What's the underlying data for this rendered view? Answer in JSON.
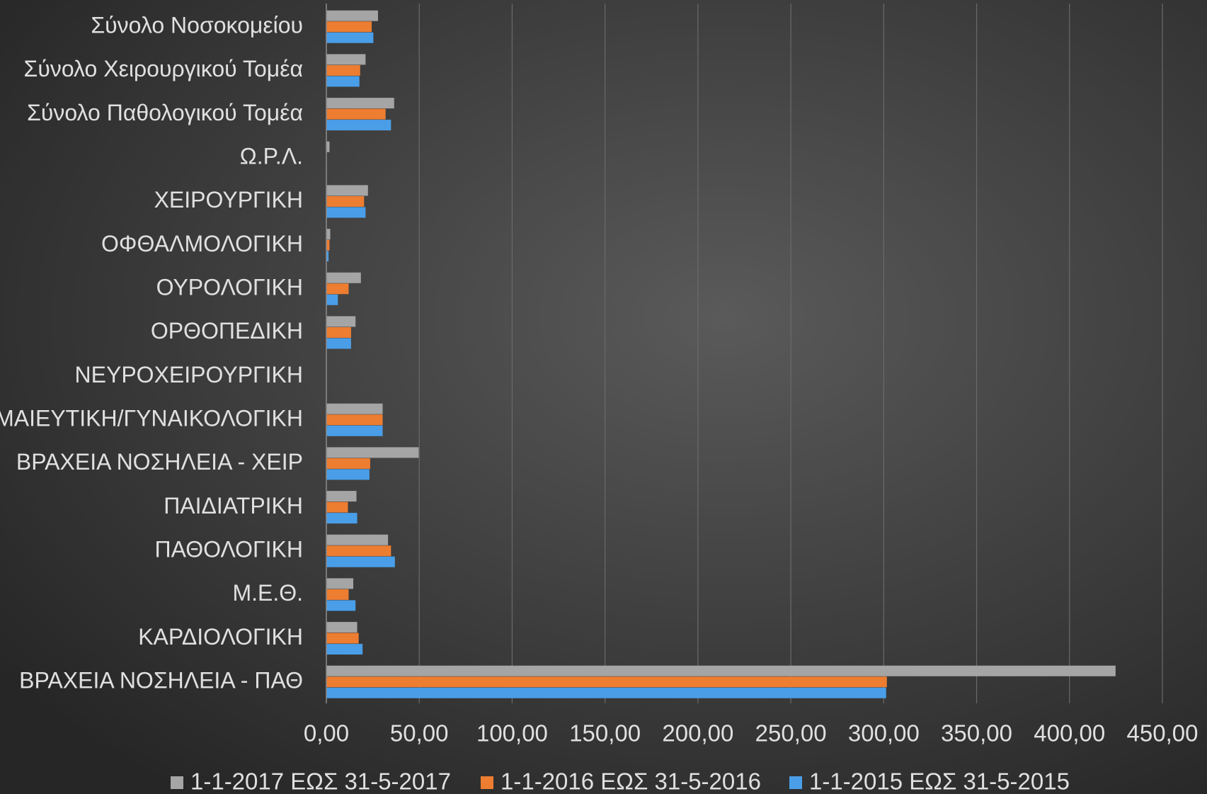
{
  "chart_data": {
    "type": "hbar",
    "categories": [
      "Σύνολο Νοσοκομείου",
      "Σύνολο Χειρουργικού Τομέα",
      "Σύνολο Παθολογικού Τομέα",
      "Ω.Ρ.Λ.",
      "ΧΕΙΡΟΥΡΓΙΚΗ",
      "ΟΦΘΑΛΜΟΛΟΓΙΚΗ",
      "ΟΥΡΟΛΟΓΙΚΗ",
      "ΟΡΘΟΠΕΔΙΚΗ",
      "ΝΕΥΡΟΧΕΙΡΟΥΡΓΙΚΗ",
      "ΜΑΙΕΥΤΙΚΗ/ΓΥΝΑΙΚΟΛΟΓΙΚΗ",
      "ΒΡΑΧΕΙΑ ΝΟΣΗΛΕΙΑ - ΧΕΙΡ",
      "ΠΑΙΔΙΑΤΡΙΚΗ",
      "ΠΑΘΟΛΟΓΙΚΗ",
      "Μ.Ε.Θ.",
      "ΚΑΡΔΙΟΛΟΓΙΚΗ",
      "ΒΡΑΧΕΙΑ ΝΟΣΗΛΕΙΑ - ΠΑΘ"
    ],
    "series": [
      {
        "name": "1-1-2017 ΕΩΣ 31-5-2017",
        "color": "#a5a5a5",
        "values": [
          27.8,
          21.1,
          36.5,
          1.7,
          22.4,
          2.1,
          18.6,
          15.7,
          0,
          30.3,
          49.7,
          16.2,
          33.2,
          14.5,
          16.6,
          424.8
        ]
      },
      {
        "name": "1-1-2016 ΕΩΣ 31-5-2016",
        "color": "#ed7d31",
        "values": [
          24.4,
          18.2,
          31.9,
          0,
          20.3,
          1.7,
          12.0,
          13.3,
          0,
          30.3,
          23.6,
          11.6,
          34.8,
          12.0,
          17.4,
          301.7
        ]
      },
      {
        "name": "1-1-2015 ΕΩΣ 31-5-2015",
        "color": "#4a9ee8",
        "values": [
          25.3,
          17.8,
          34.8,
          0,
          21.1,
          1.2,
          6.2,
          13.3,
          0,
          30.3,
          23.2,
          16.6,
          36.9,
          15.7,
          19.5,
          301.3
        ]
      }
    ],
    "xlim": [
      0,
      450
    ],
    "xticks": [
      {
        "value": 0,
        "label": "0,00"
      },
      {
        "value": 50,
        "label": "50,00"
      },
      {
        "value": 100,
        "label": "100,00"
      },
      {
        "value": 150,
        "label": "150,00"
      },
      {
        "value": 200,
        "label": "200,00"
      },
      {
        "value": 250,
        "label": "250,00"
      },
      {
        "value": 300,
        "label": "300,00"
      },
      {
        "value": 350,
        "label": "350,00"
      },
      {
        "value": 400,
        "label": "400,00"
      },
      {
        "value": 450,
        "label": "450,00"
      }
    ],
    "grid": true,
    "legend": "bottom"
  }
}
